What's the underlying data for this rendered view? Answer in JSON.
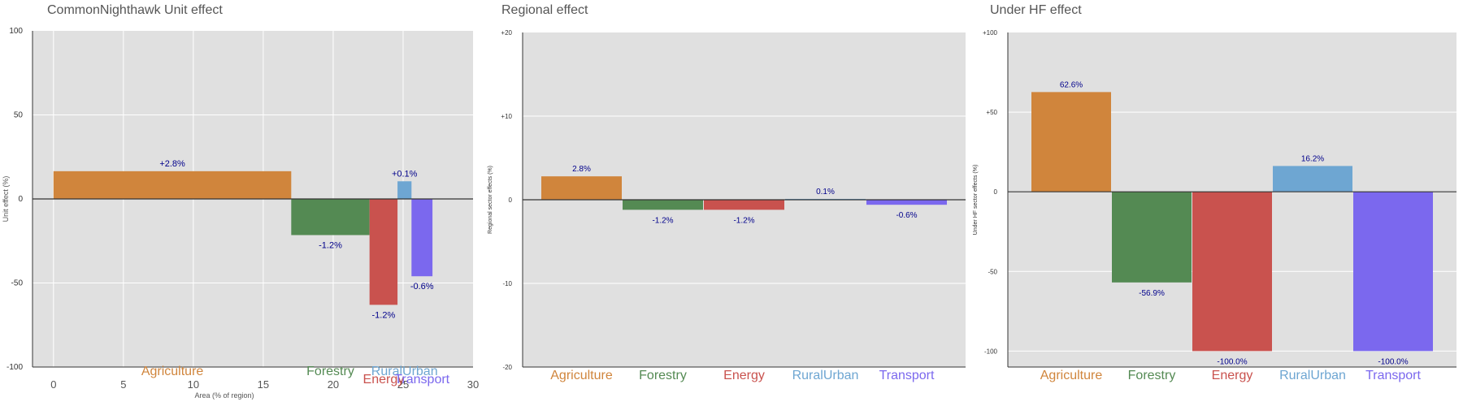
{
  "colors": {
    "Agriculture": "#D0853C",
    "Forestry": "#548A53",
    "Energy": "#C9524E",
    "RuralUrban": "#6EA6D2",
    "Transport": "#7B68EE",
    "panel_bg": "#E0E0E0",
    "label_text": "#00008B"
  },
  "chart_data": [
    {
      "type": "bar",
      "variant": "variable-width",
      "title": "CommonNighthawk Unit effect",
      "xlabel": "Area (% of region)",
      "ylabel": "Unit effect (%)",
      "xlim": [
        -1.5,
        30
      ],
      "ylim": [
        -100,
        100
      ],
      "xticks": [
        "0",
        "5",
        "10",
        "15",
        "20",
        "25",
        "30"
      ],
      "yticks": [
        "-100",
        "-50",
        "0",
        "50",
        "100"
      ],
      "grid": true,
      "categories": [
        "Agriculture",
        "Forestry",
        "Energy",
        "RuralUrban",
        "Transport"
      ],
      "series": [
        {
          "x_start": [
            0,
            17,
            22.6,
            24.6,
            25.6
          ],
          "x_end": [
            17,
            22.6,
            24.6,
            25.6,
            27.1
          ],
          "values": [
            16.5,
            -21.5,
            -63,
            10.5,
            -46
          ],
          "labels": [
            "+2.8%",
            "-1.2%",
            "-1.2%",
            "+0.1%",
            "-0.6%"
          ]
        }
      ]
    },
    {
      "type": "bar",
      "title": "Regional effect",
      "xlabel": "",
      "ylabel": "Regional sector effects (%)",
      "ylim": [
        -20,
        20
      ],
      "yticks": [
        "-20",
        "-10",
        "0",
        "+10",
        "+20"
      ],
      "grid": true,
      "categories": [
        "Agriculture",
        "Forestry",
        "Energy",
        "RuralUrban",
        "Transport"
      ],
      "series": [
        {
          "values": [
            2.8,
            -1.2,
            -1.2,
            0.1,
            -0.6
          ],
          "labels": [
            "2.8%",
            "-1.2%",
            "-1.2%",
            "0.1%",
            "-0.6%"
          ]
        }
      ]
    },
    {
      "type": "bar",
      "title": "Under HF effect",
      "xlabel": "",
      "ylabel": "Under HF sector effects (%)",
      "ylim": [
        -110,
        100
      ],
      "yticks": [
        "-100",
        "-50",
        "0",
        "+50",
        "+100"
      ],
      "grid": true,
      "categories": [
        "Agriculture",
        "Forestry",
        "Energy",
        "RuralUrban",
        "Transport"
      ],
      "series": [
        {
          "values": [
            62.6,
            -56.9,
            -100.0,
            16.2,
            -100.0
          ],
          "labels": [
            "62.6%",
            "-56.9%",
            "-100.0%",
            "16.2%",
            "-100.0%"
          ]
        }
      ]
    }
  ]
}
